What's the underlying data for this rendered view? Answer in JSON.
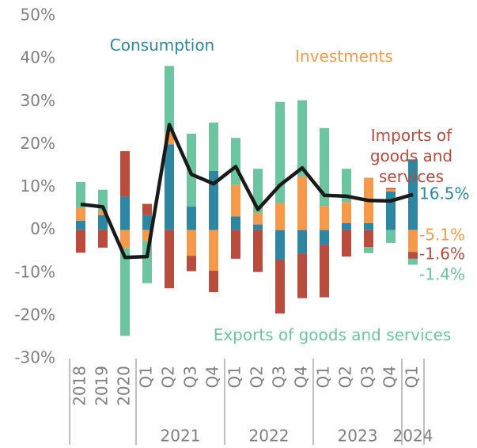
{
  "chart_data": {
    "type": "stacked_bar_line",
    "categories": [
      "2018",
      "2019",
      "2020",
      "Q1",
      "Q2",
      "Q3",
      "Q4",
      "Q1",
      "Q2",
      "Q3",
      "Q4",
      "Q1",
      "Q2",
      "Q3",
      "Q4",
      "Q1"
    ],
    "x_groups": [
      {
        "label": "2021",
        "from": 3,
        "to": 6
      },
      {
        "label": "2022",
        "from": 7,
        "to": 10
      },
      {
        "label": "2023",
        "from": 11,
        "to": 14
      },
      {
        "label": "2024",
        "from": 15,
        "to": 15
      }
    ],
    "series": [
      {
        "name": "Consumption",
        "color": "#2e86a0",
        "values": [
          2.2,
          3.5,
          7.8,
          3.5,
          20.0,
          5.5,
          13.8,
          3.2,
          1.3,
          -7.0,
          -5.5,
          -3.5,
          1.6,
          1.6,
          9.0,
          16.5
        ],
        "value_labels": [
          null,
          null,
          null,
          null,
          null,
          null,
          null,
          null,
          null,
          null,
          null,
          null,
          null,
          null,
          null,
          "16.5%"
        ]
      },
      {
        "name": "Investments",
        "color": "#f59a4a",
        "values": [
          3.0,
          1.0,
          -4.2,
          -2.5,
          2.8,
          -6.0,
          -9.5,
          7.3,
          2.7,
          6.3,
          12.5,
          5.6,
          4.9,
          10.6,
          0.5,
          -5.1
        ],
        "value_labels": [
          null,
          null,
          null,
          null,
          null,
          null,
          null,
          null,
          null,
          null,
          null,
          null,
          null,
          null,
          null,
          "-5.1%"
        ]
      },
      {
        "name": "Imports of goods and services",
        "color": "#b84c3e",
        "values": [
          -5.3,
          -4.1,
          10.6,
          2.6,
          -13.6,
          -3.6,
          -5.0,
          -6.7,
          -9.8,
          -12.5,
          -10.4,
          -12.2,
          -6.2,
          -4.0,
          0.3,
          -1.6
        ],
        "value_labels": [
          null,
          null,
          null,
          null,
          null,
          null,
          null,
          null,
          null,
          null,
          null,
          null,
          null,
          null,
          null,
          "-1.6%"
        ]
      },
      {
        "name": "Exports of goods and services",
        "color": "#6dc4a0",
        "values": [
          6.0,
          4.9,
          -20.5,
          -9.9,
          15.5,
          17.0,
          11.3,
          11.0,
          10.3,
          23.6,
          17.8,
          18.2,
          7.8,
          -1.4,
          -3.0,
          -1.4
        ],
        "value_labels": [
          null,
          null,
          null,
          null,
          null,
          null,
          null,
          null,
          null,
          null,
          null,
          null,
          null,
          null,
          null,
          "-1.4%"
        ]
      }
    ],
    "line": {
      "color": "#1a1a1a",
      "values": [
        6.0,
        5.4,
        -6.4,
        -6.2,
        24.6,
        13.0,
        10.8,
        14.8,
        4.8,
        10.5,
        14.5,
        8.1,
        7.9,
        6.9,
        6.8,
        8.3
      ]
    },
    "ylim": [
      -30,
      50
    ],
    "yticks": [
      {
        "value": -30,
        "label": "-30%"
      },
      {
        "value": -20,
        "label": "-20%"
      },
      {
        "value": -10,
        "label": "-10%"
      },
      {
        "value": 0,
        "label": "0%"
      },
      {
        "value": 10,
        "label": "10%"
      },
      {
        "value": 20,
        "label": "20%"
      },
      {
        "value": 30,
        "label": "30%"
      },
      {
        "value": 40,
        "label": "40%"
      },
      {
        "value": 50,
        "label": "50%"
      }
    ]
  }
}
